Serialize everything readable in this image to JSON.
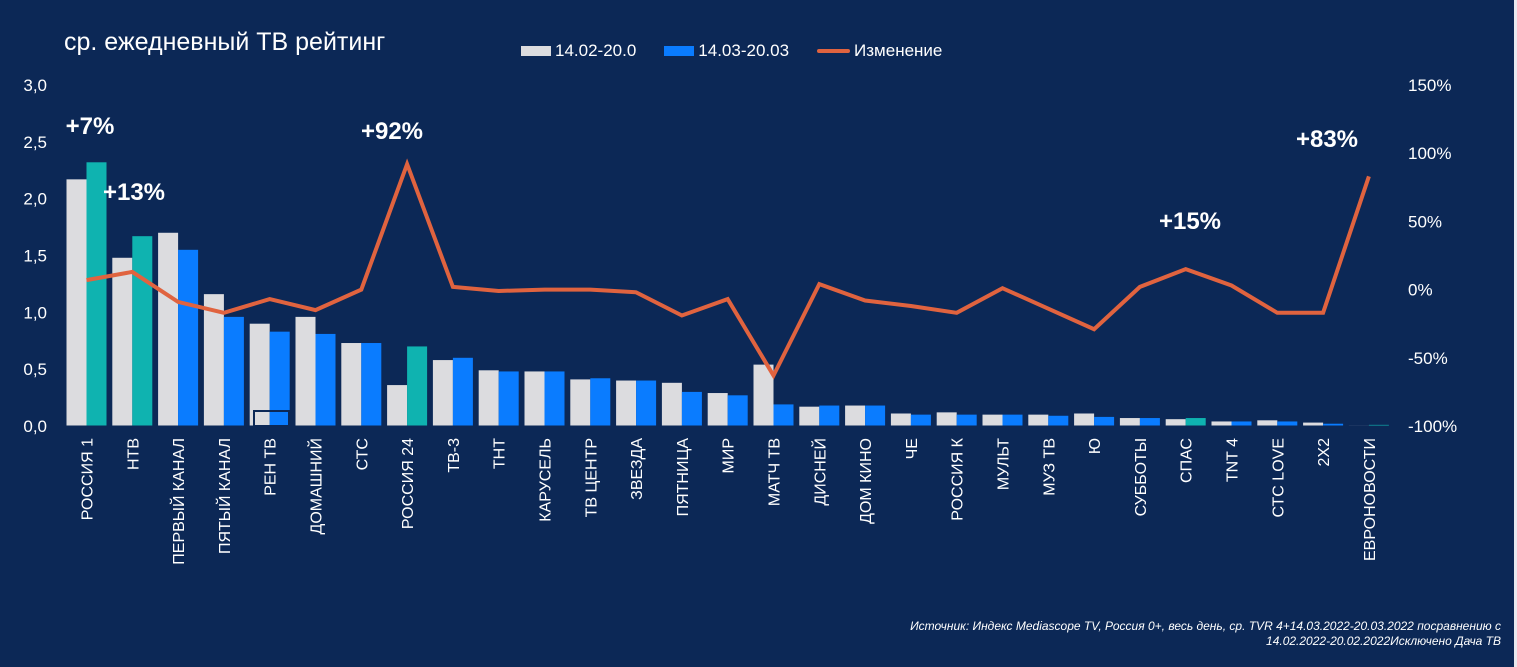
{
  "chart_data": {
    "type": "bar",
    "title": "ср. ежедневный ТВ рейтинг",
    "xlabel": "",
    "ylabel": "",
    "ylim": [
      0,
      3.0
    ],
    "y_ticks": [
      "0,0",
      "0,5",
      "1,0",
      "1,5",
      "2,0",
      "2,5",
      "3,0"
    ],
    "y2lim": [
      -100,
      150
    ],
    "y2_ticks": [
      "-100%",
      "-50%",
      "0%",
      "50%",
      "100%",
      "150%"
    ],
    "legend_position": "top",
    "categories": [
      "РОССИЯ 1",
      "НТВ",
      "ПЕРВЫЙ КАНАЛ",
      "ПЯТЫЙ КАНАЛ",
      "РЕН ТВ",
      "ДОМАШНИЙ",
      "СТС",
      "РОССИЯ 24",
      "ТВ-3",
      "ТНТ",
      "КАРУСЕЛЬ",
      "ТВ ЦЕНТР",
      "ЗВЕЗДА",
      "ПЯТНИЦА",
      "МИР",
      "МАТЧ ТВ",
      "ДИСНЕЙ",
      "ДОМ КИНО",
      "ЧЕ",
      "РОССИЯ К",
      "МУЛЬТ",
      "МУЗ ТВ",
      "Ю",
      "СУББОТЫ",
      "СПАС",
      "TNT 4",
      "СТС LOVE",
      "2X2",
      "ЕВРОНОВОСТИ"
    ],
    "series": [
      {
        "name": "14.02-20.0",
        "type": "bar",
        "color": "#dcdcdf",
        "values": [
          2.17,
          1.48,
          1.7,
          1.16,
          0.9,
          0.96,
          0.73,
          0.36,
          0.58,
          0.49,
          0.48,
          0.41,
          0.4,
          0.38,
          0.29,
          0.54,
          0.17,
          0.18,
          0.11,
          0.12,
          0.1,
          0.1,
          0.11,
          0.07,
          0.06,
          0.04,
          0.05,
          0.03,
          0.005
        ]
      },
      {
        "name": "14.03-20.03",
        "type": "bar",
        "color": "#0a7cff",
        "highlight_color": "#0fb3b0",
        "highlighted": [
          0,
          1,
          7,
          24,
          28
        ],
        "values": [
          2.32,
          1.67,
          1.55,
          0.96,
          0.83,
          0.81,
          0.73,
          0.7,
          0.6,
          0.48,
          0.48,
          0.42,
          0.4,
          0.3,
          0.27,
          0.19,
          0.18,
          0.18,
          0.1,
          0.1,
          0.1,
          0.09,
          0.08,
          0.07,
          0.07,
          0.04,
          0.04,
          0.02,
          0.01
        ]
      },
      {
        "name": "Изменение",
        "type": "line",
        "axis": "right",
        "color": "#e0633f",
        "unit": "%",
        "values": [
          7,
          13,
          -9,
          -17,
          -7,
          -15,
          0,
          92,
          2,
          -1,
          0,
          0,
          -2,
          -19,
          -7,
          -63,
          4,
          -8,
          -12,
          -17,
          1,
          -14,
          -29,
          2,
          15,
          3,
          -17,
          -17,
          83
        ]
      }
    ],
    "annotations": [
      {
        "text": "+7%",
        "category": "РОССИЯ 1"
      },
      {
        "text": "+13%",
        "category": "НТВ"
      },
      {
        "text": "+92%",
        "category": "РОССИЯ 24"
      },
      {
        "text": "+15%",
        "category": "СПАС"
      },
      {
        "text": "+83%",
        "category": "ЕВРОНОВОСТИ"
      }
    ]
  },
  "legend": [
    {
      "label": "14.02-20.0",
      "color": "#dcdcdf",
      "kind": "bar"
    },
    {
      "label": "14.03-20.03",
      "color": "#0a7cff",
      "kind": "bar"
    },
    {
      "label": "Изменение",
      "color": "#e0633f",
      "kind": "line"
    }
  ],
  "source_line1": "Источник: Индекс Mediascope TV, Россия 0+, весь день, ср. TVR 4+14.03.2022-20.03.2022 посравнению с",
  "source_line2": "14.02.2022-20.02.2022Исключено Дача ТВ"
}
